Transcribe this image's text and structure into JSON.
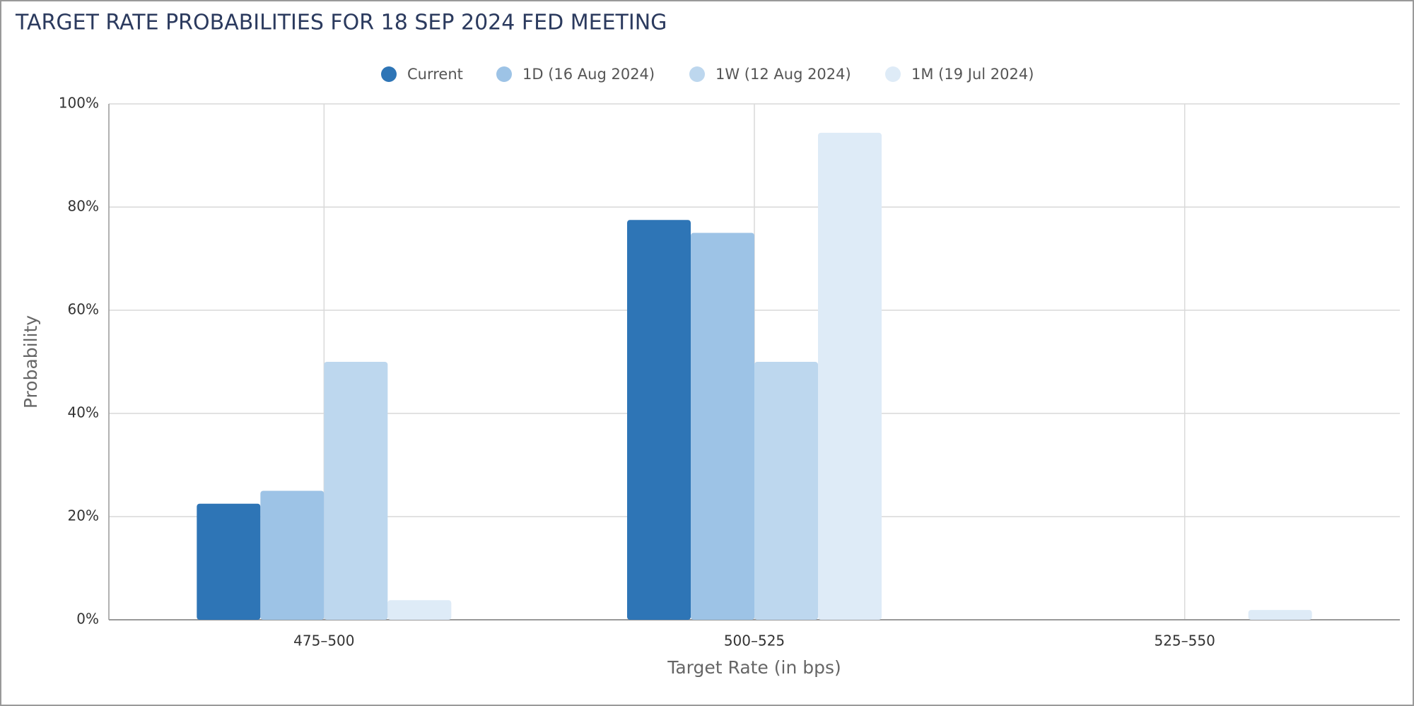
{
  "chart_data": {
    "type": "bar",
    "title": "TARGET RATE PROBABILITIES FOR 18 SEP 2024 FED MEETING",
    "x_label": "Target Rate (in bps)",
    "y_label": "Probability",
    "categories": [
      "475–500",
      "500–525",
      "525–550"
    ],
    "series": [
      {
        "name": "Current",
        "color": "#2e75b6",
        "values": [
          22.5,
          77.5,
          0
        ]
      },
      {
        "name": "1D (16 Aug 2024)",
        "color": "#9dc3e6",
        "values": [
          25,
          75,
          0
        ]
      },
      {
        "name": "1W (12 Aug 2024)",
        "color": "#bdd7ee",
        "values": [
          50,
          50,
          0
        ]
      },
      {
        "name": "1M (19 Jul 2024)",
        "color": "#deebf7",
        "values": [
          3.8,
          94.4,
          1.9
        ]
      }
    ],
    "ylim": [
      0,
      100
    ],
    "yticks": [
      {
        "value": 0,
        "label": "0%"
      },
      {
        "value": 20,
        "label": "20%"
      },
      {
        "value": 40,
        "label": "40%"
      },
      {
        "value": 60,
        "label": "60%"
      },
      {
        "value": 80,
        "label": "80%"
      },
      {
        "value": 100,
        "label": "100%"
      }
    ],
    "grid": true,
    "legend": "top"
  }
}
